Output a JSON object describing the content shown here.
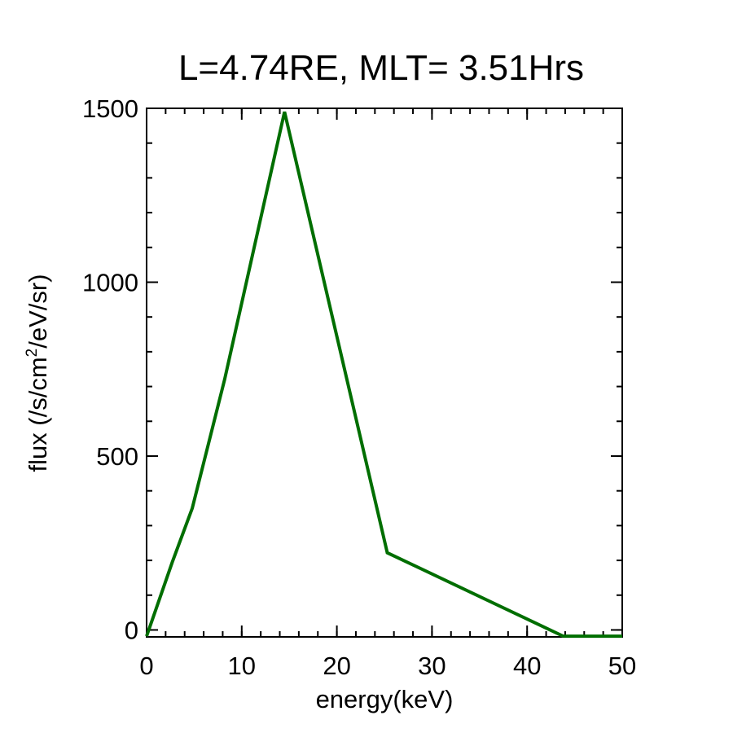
{
  "chart_data": {
    "type": "line",
    "title": "L=4.74RE, MLT= 3.51Hrs",
    "xlabel": "energy(keV)",
    "ylabel": {
      "before": "flux (/s/cm",
      "superscript": "2",
      "after": "/eV/sr)"
    },
    "xlim": [
      0,
      50
    ],
    "ylim": [
      -20,
      1500
    ],
    "x_ticks": [
      0,
      10,
      20,
      30,
      40,
      50
    ],
    "y_ticks": [
      0,
      500,
      1000,
      1500
    ],
    "x_tick_labels": [
      "0",
      "10",
      "20",
      "30",
      "40",
      "50"
    ],
    "y_tick_labels": [
      "0",
      "500",
      "1000",
      "1500"
    ],
    "grid": false,
    "series": [
      {
        "color": "#006e00",
        "x": [
          0.0,
          2.7,
          4.8,
          8.2,
          14.5,
          25.3,
          43.8,
          50.0
        ],
        "y": [
          -18,
          195,
          350,
          720,
          1490,
          222,
          -18,
          -18
        ]
      }
    ]
  }
}
